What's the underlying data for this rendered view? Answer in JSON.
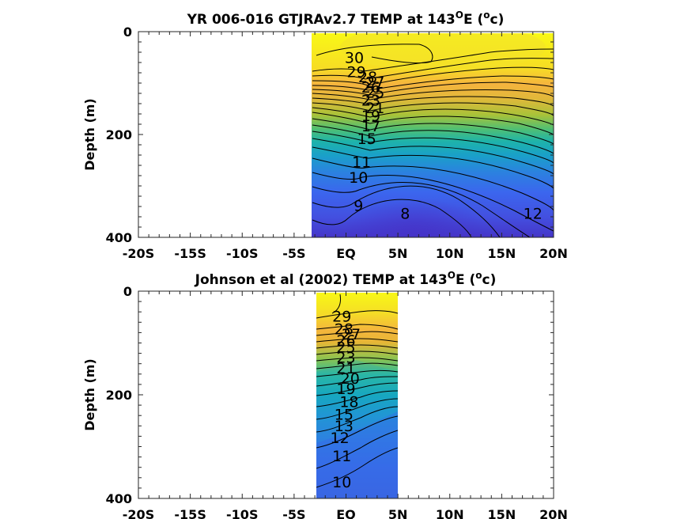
{
  "chart_data": [
    {
      "type": "contour",
      "title": "YR 006-016 GTJRAv2.7 TEMP at 143",
      "title_sup": "O",
      "title_mid": "E (",
      "title_sup2": "o",
      "title_end": "c)",
      "ylabel": "Depth (m)",
      "xlabel": "",
      "xlim": [
        -20,
        20
      ],
      "ylim": [
        0,
        400
      ],
      "y_inverted": true,
      "x_ticks": [
        -20,
        -15,
        -10,
        -5,
        0,
        5,
        10,
        15,
        20
      ],
      "x_tick_labels": [
        "-20S",
        "-15S",
        "-10S",
        "-5S",
        "EQ",
        "5N",
        "10N",
        "15N",
        "20N"
      ],
      "y_ticks": [
        0,
        200,
        400
      ],
      "y_tick_labels": [
        "0",
        "200",
        "400"
      ],
      "data_extent_lat": [
        -3,
        20
      ],
      "contour_interval": 1,
      "contour_levels": [
        8,
        9,
        10,
        11,
        12,
        13,
        14,
        15,
        16,
        17,
        18,
        19,
        20,
        21,
        22,
        23,
        24,
        25,
        26,
        27,
        28,
        29,
        30
      ],
      "contour_labels": [
        {
          "text": "30",
          "lat": 0.8,
          "depth": 52
        },
        {
          "text": "29",
          "lat": 1.0,
          "depth": 80
        },
        {
          "text": "28",
          "lat": 2.1,
          "depth": 90
        },
        {
          "text": "27",
          "lat": 2.8,
          "depth": 100
        },
        {
          "text": "26",
          "lat": 2.4,
          "depth": 110
        },
        {
          "text": "25",
          "lat": 2.8,
          "depth": 120
        },
        {
          "text": "23",
          "lat": 2.4,
          "depth": 135
        },
        {
          "text": "21",
          "lat": 2.8,
          "depth": 150
        },
        {
          "text": "19",
          "lat": 2.4,
          "depth": 165
        },
        {
          "text": "17",
          "lat": 2.4,
          "depth": 185
        },
        {
          "text": "15",
          "lat": 2.0,
          "depth": 210
        },
        {
          "text": "11",
          "lat": 1.5,
          "depth": 255
        },
        {
          "text": "10",
          "lat": 1.2,
          "depth": 285
        },
        {
          "text": "9",
          "lat": 1.2,
          "depth": 340
        },
        {
          "text": "8",
          "lat": 5.7,
          "depth": 355
        },
        {
          "text": "12",
          "lat": 18.0,
          "depth": 355
        }
      ],
      "colormap": "parula",
      "color_range": [
        8,
        30
      ]
    },
    {
      "type": "contour",
      "title": "Johnson et al (2002) TEMP at 143",
      "title_sup": "O",
      "title_mid": "E (",
      "title_sup2": "o",
      "title_end": "c)",
      "ylabel": "Depth (m)",
      "xlabel": "",
      "xlim": [
        -20,
        20
      ],
      "ylim": [
        0,
        400
      ],
      "y_inverted": true,
      "x_ticks": [
        -20,
        -15,
        -10,
        -5,
        0,
        5,
        10,
        15,
        20
      ],
      "x_tick_labels": [
        "-20S",
        "-15S",
        "-10S",
        "-5S",
        "EQ",
        "5N",
        "10N",
        "15N",
        "20N"
      ],
      "y_ticks": [
        0,
        200,
        400
      ],
      "y_tick_labels": [
        "0",
        "200",
        "400"
      ],
      "data_extent_lat": [
        -2.5,
        5
      ],
      "contour_interval": 1,
      "contour_levels": [
        10,
        11,
        12,
        13,
        14,
        15,
        16,
        17,
        18,
        19,
        20,
        21,
        22,
        23,
        24,
        25,
        26,
        27,
        28,
        29
      ],
      "contour_labels": [
        {
          "text": "29",
          "lat": -0.4,
          "depth": 50
        },
        {
          "text": "28",
          "lat": -0.2,
          "depth": 75
        },
        {
          "text": "27",
          "lat": 0.5,
          "depth": 85
        },
        {
          "text": "26",
          "lat": 0.0,
          "depth": 97
        },
        {
          "text": "25",
          "lat": 0.0,
          "depth": 110
        },
        {
          "text": "23",
          "lat": 0.0,
          "depth": 130
        },
        {
          "text": "21",
          "lat": 0.0,
          "depth": 150
        },
        {
          "text": "20",
          "lat": 0.4,
          "depth": 170
        },
        {
          "text": "19",
          "lat": 0.0,
          "depth": 190
        },
        {
          "text": "18",
          "lat": 0.3,
          "depth": 215
        },
        {
          "text": "15",
          "lat": -0.2,
          "depth": 240
        },
        {
          "text": "13",
          "lat": -0.2,
          "depth": 262
        },
        {
          "text": "12",
          "lat": -0.6,
          "depth": 285
        },
        {
          "text": "11",
          "lat": -0.4,
          "depth": 320
        },
        {
          "text": "10",
          "lat": -0.4,
          "depth": 370
        }
      ],
      "colormap": "parula",
      "color_range": [
        10,
        29
      ]
    }
  ]
}
